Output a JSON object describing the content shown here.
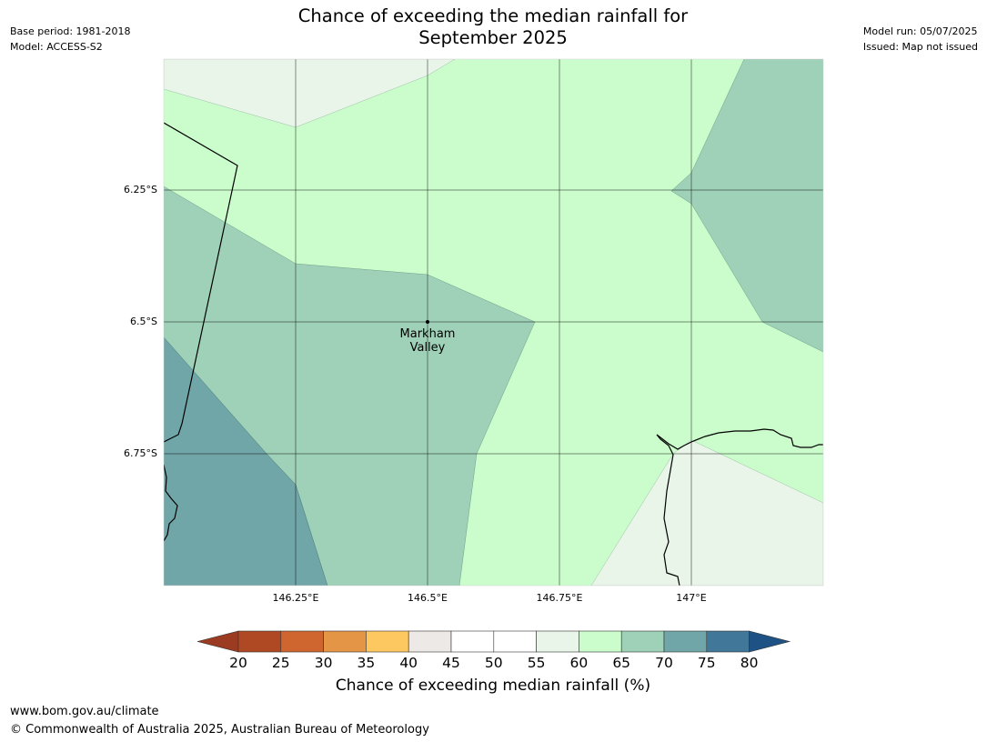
{
  "header": {
    "title_line1": "Chance of exceeding the median rainfall for",
    "title_line2": "September 2025",
    "base_period": "Base period: 1981-2018",
    "model": "Model: ACCESS-S2",
    "model_run": "Model run: 05/07/2025",
    "issued": "Issued: Map not issued"
  },
  "map": {
    "lat_labels": [
      "6.25°S",
      "6.5°S",
      "6.75°S"
    ],
    "lon_labels": [
      "146.25°E",
      "146.5°E",
      "146.75°E",
      "147°E"
    ],
    "place": {
      "name_line1": "Markham",
      "name_line2": "Valley"
    },
    "colors": {
      "c40_45": "#ede9e6",
      "c55_60": "#e9f5e9",
      "c60_65": "#cafdcb",
      "c65_70": "#9ed1b8",
      "c70_75": "#71a6a8"
    }
  },
  "colorbar": {
    "ticks": [
      "20",
      "25",
      "30",
      "35",
      "40",
      "45",
      "50",
      "55",
      "60",
      "65",
      "70",
      "75",
      "80"
    ],
    "colors": [
      "#af4924",
      "#d0662f",
      "#e49545",
      "#fec860",
      "#ede9e6",
      "#ffffff",
      "#ffffff",
      "#e9f5e9",
      "#cafdcb",
      "#9ed1b8",
      "#71a6a8",
      "#417899"
    ],
    "under_color": "#9b3b22",
    "over_color": "#1e5284",
    "label": "Chance of exceeding median rainfall (%)"
  },
  "footer": {
    "url": "www.bom.gov.au/climate",
    "copyright": "© Commonwealth of Australia 2025, Australian Bureau of Meteorology"
  }
}
